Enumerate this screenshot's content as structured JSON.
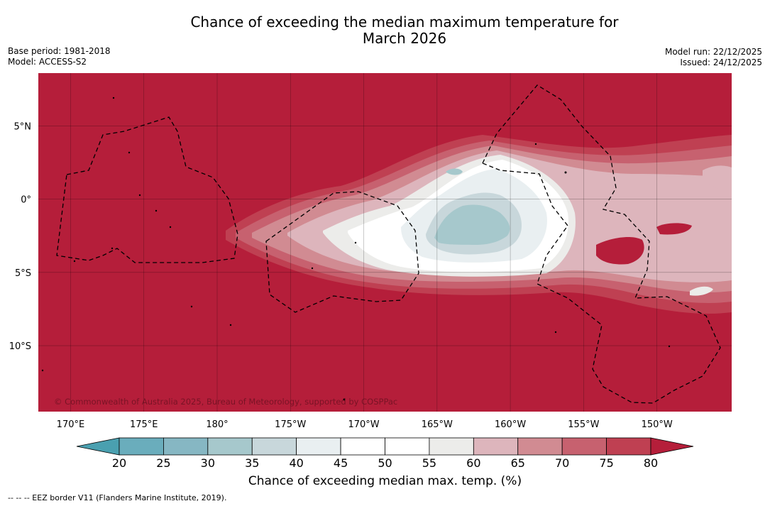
{
  "title": {
    "line1": "Chance of exceeding the median maximum temperature for",
    "line2": "March 2026"
  },
  "meta": {
    "base_period": "Base period: 1981-2018",
    "model": "Model: ACCESS-S2",
    "model_run": "Model run: 22/12/2025",
    "issued": "Issued: 24/12/2025"
  },
  "map": {
    "lat_ticks": [
      {
        "label": "5°N",
        "value": 5
      },
      {
        "label": "0°",
        "value": 0
      },
      {
        "label": "5°S",
        "value": -5
      },
      {
        "label": "10°S",
        "value": -10
      }
    ],
    "lon_ticks": [
      {
        "label": "170°E",
        "value": 170
      },
      {
        "label": "175°E",
        "value": 175
      },
      {
        "label": "180°",
        "value": 180
      },
      {
        "label": "175°W",
        "value": 185
      },
      {
        "label": "170°W",
        "value": 190
      },
      {
        "label": "165°W",
        "value": 195
      },
      {
        "label": "160°W",
        "value": 200
      },
      {
        "label": "155°W",
        "value": 205
      },
      {
        "label": "150°W",
        "value": 210
      }
    ],
    "lon_range": [
      167.8,
      215.1
    ],
    "lat_range": [
      -14.5,
      8.6
    ],
    "copyright": "© Commonwealth of Australia 2025, Bureau of Meteorology, supported by COSPPac",
    "background_color": "#b51e3a"
  },
  "colorbar": {
    "ticks": [
      "20",
      "25",
      "30",
      "35",
      "40",
      "45",
      "50",
      "55",
      "60",
      "65",
      "70",
      "75",
      "80"
    ],
    "colors": [
      "#6aadbc",
      "#86b7c3",
      "#a6c8cc",
      "#c8d7db",
      "#e9eff1",
      "#ffffff",
      "#ffffff",
      "#ececea",
      "#ddb5bc",
      "#d18b92",
      "#c7616f",
      "#bf4052"
    ],
    "under_color": "#4aa0b0",
    "over_color": "#b51e3a",
    "label": "Chance of exceeding median max. temp. (%)"
  },
  "legend": {
    "eez": "--  --  -- EEZ border V11 (Flanders Marine Institute, 2019)."
  }
}
